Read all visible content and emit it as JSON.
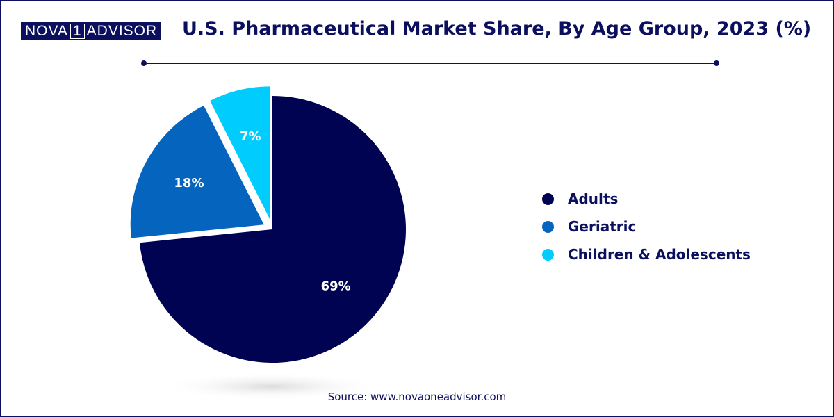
{
  "brand": {
    "logo_left": "NOVA",
    "logo_one": "1",
    "logo_right": "ADVISOR"
  },
  "colors": {
    "navy": "#000352",
    "blue": "#0565be",
    "cyan": "#00cdfd"
  },
  "chart_data": {
    "type": "pie",
    "title": "U.S. Pharmaceutical Market Share, By Age Group, 2023 (%)",
    "categories": [
      "Adults",
      "Geriatric",
      "Children & Adolescents"
    ],
    "values": [
      69,
      18,
      7
    ],
    "labels": [
      "69%",
      "18%",
      "7%"
    ],
    "colors": [
      "#000352",
      "#0565be",
      "#00cdfd"
    ],
    "exploded": "Geriatric, Children & Adolescents",
    "legend_position": "right"
  },
  "source": "Source: www.novaoneadvisor.com"
}
